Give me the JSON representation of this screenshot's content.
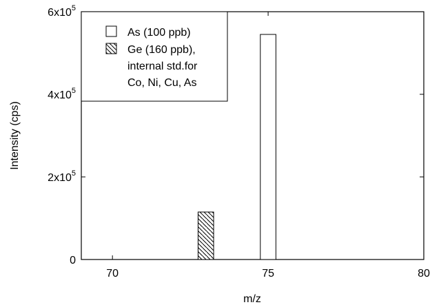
{
  "chart_data": {
    "type": "bar",
    "xlabel": "m/z",
    "ylabel": "Intensity (cps)",
    "xlim": [
      69,
      80
    ],
    "ylim": [
      0,
      600000
    ],
    "x_ticks": [
      {
        "value": 70,
        "label": "70"
      },
      {
        "value": 75,
        "label": "75"
      },
      {
        "value": 80,
        "label": "80"
      }
    ],
    "y_ticks": [
      {
        "value": 0,
        "mantissa": "0",
        "exponent": ""
      },
      {
        "value": 200000,
        "mantissa": "2x10",
        "exponent": "5"
      },
      {
        "value": 400000,
        "mantissa": "4x10",
        "exponent": "5"
      },
      {
        "value": 600000,
        "mantissa": "6x10",
        "exponent": "5"
      }
    ],
    "grid": false,
    "legend_position": "top-left",
    "series": [
      {
        "name": "As (100 ppb)",
        "pattern": "solid-white",
        "points": [
          {
            "x": 75,
            "y": 545000
          }
        ]
      },
      {
        "name_lines": [
          "Ge (160 ppb),",
          "internal std.for",
          "Co, Ni, Cu, As"
        ],
        "pattern": "diagonal-hatch",
        "points": [
          {
            "x": 73,
            "y": 115000
          }
        ]
      }
    ]
  }
}
